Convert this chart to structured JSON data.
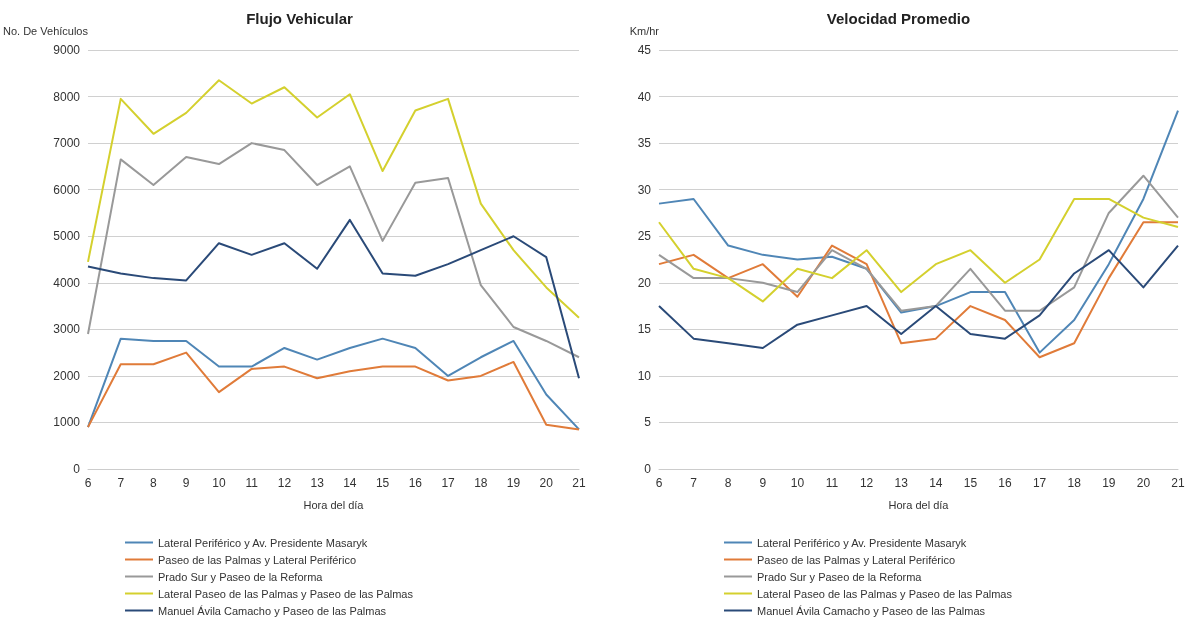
{
  "chart_data": [
    {
      "type": "line",
      "title": "Flujo Vehicular",
      "xlabel": "Hora del día",
      "ylabel": "No. De Vehículos",
      "categories": [
        "6",
        "7",
        "8",
        "9",
        "10",
        "11",
        "12",
        "13",
        "14",
        "15",
        "16",
        "17",
        "18",
        "19",
        "20",
        "21"
      ],
      "ylim": [
        0,
        9000
      ],
      "yticks": [
        0,
        1000,
        2000,
        3000,
        4000,
        5000,
        6000,
        7000,
        8000,
        9000
      ],
      "grid": "y",
      "legend": "bottom",
      "marker": "none",
      "line_style": "solid",
      "series": [
        {
          "name": "Lateral Periférico y Av. Presidente Masaryk",
          "color": "#4f86b6",
          "values": [
            900,
            2800,
            2750,
            2750,
            2200,
            2200,
            2600,
            2350,
            2600,
            2800,
            2600,
            2000,
            2400,
            2750,
            1600,
            850
          ]
        },
        {
          "name": "Paseo de las Palmas y Lateral Periférico",
          "color": "#e07b39",
          "values": [
            900,
            2250,
            2250,
            2500,
            1650,
            2150,
            2200,
            1950,
            2100,
            2200,
            2200,
            1900,
            2000,
            2300,
            950,
            850
          ]
        },
        {
          "name": "Prado Sur y Paseo de la Reforma",
          "color": "#999999",
          "values": [
            2900,
            6650,
            6100,
            6700,
            6550,
            7000,
            6850,
            6100,
            6500,
            4900,
            6150,
            6250,
            3950,
            3050,
            2750,
            2400
          ]
        },
        {
          "name": "Lateral Paseo de las Palmas y Paseo de las Palmas",
          "color": "#d4d02e",
          "values": [
            4450,
            7950,
            7200,
            7650,
            8350,
            7850,
            8200,
            7550,
            8050,
            6400,
            7700,
            7950,
            5700,
            4700,
            3900,
            3250
          ]
        },
        {
          "name": "Manuel Ávila Camacho y Paseo de las Palmas",
          "color": "#2a4a78",
          "values": [
            4350,
            4200,
            4100,
            4050,
            4850,
            4600,
            4850,
            4300,
            5350,
            4200,
            4150,
            4400,
            4700,
            5000,
            4550,
            1950
          ]
        }
      ]
    },
    {
      "type": "line",
      "title": "Velocidad Promedio",
      "xlabel": "Hora del día",
      "ylabel": "Km/hr",
      "categories": [
        "6",
        "7",
        "8",
        "9",
        "10",
        "11",
        "12",
        "13",
        "14",
        "15",
        "16",
        "17",
        "18",
        "19",
        "20",
        "21"
      ],
      "ylim": [
        0,
        45
      ],
      "yticks": [
        0,
        5,
        10,
        15,
        20,
        25,
        30,
        35,
        40,
        45
      ],
      "grid": "y",
      "legend": "bottom",
      "marker": "none",
      "line_style": "solid",
      "series": [
        {
          "name": "Lateral Periférico y Av. Presidente Masaryk",
          "color": "#4f86b6",
          "values": [
            28.5,
            29,
            24,
            23,
            22.5,
            22.8,
            21.5,
            16.8,
            17.5,
            19,
            19,
            12.5,
            16,
            22,
            29,
            38.5
          ]
        },
        {
          "name": "Paseo de las Palmas y Lateral Periférico",
          "color": "#e07b39",
          "values": [
            22,
            23,
            20.5,
            22,
            18.5,
            24,
            22,
            13.5,
            14,
            17.5,
            16,
            12,
            13.5,
            20.5,
            26.5,
            26.5
          ]
        },
        {
          "name": "Prado Sur y Paseo de la Reforma",
          "color": "#999999",
          "values": [
            23,
            20.5,
            20.5,
            20,
            19,
            23.5,
            21.5,
            17,
            17.5,
            21.5,
            17,
            17,
            19.5,
            27.5,
            31.5,
            27
          ]
        },
        {
          "name": "Lateral Paseo de las Palmas y Paseo de las Palmas",
          "color": "#d4d02e",
          "values": [
            26.5,
            21.5,
            20.5,
            18,
            21.5,
            20.5,
            23.5,
            19,
            22,
            23.5,
            20,
            22.5,
            29,
            29,
            27,
            26
          ]
        },
        {
          "name": "Manuel Ávila Camacho y Paseo de las Palmas",
          "color": "#2a4a78",
          "values": [
            17.5,
            14,
            13.5,
            13,
            15.5,
            16.5,
            17.5,
            14.5,
            17.5,
            14.5,
            14,
            16.5,
            21,
            23.5,
            19.5,
            24
          ]
        }
      ]
    }
  ]
}
